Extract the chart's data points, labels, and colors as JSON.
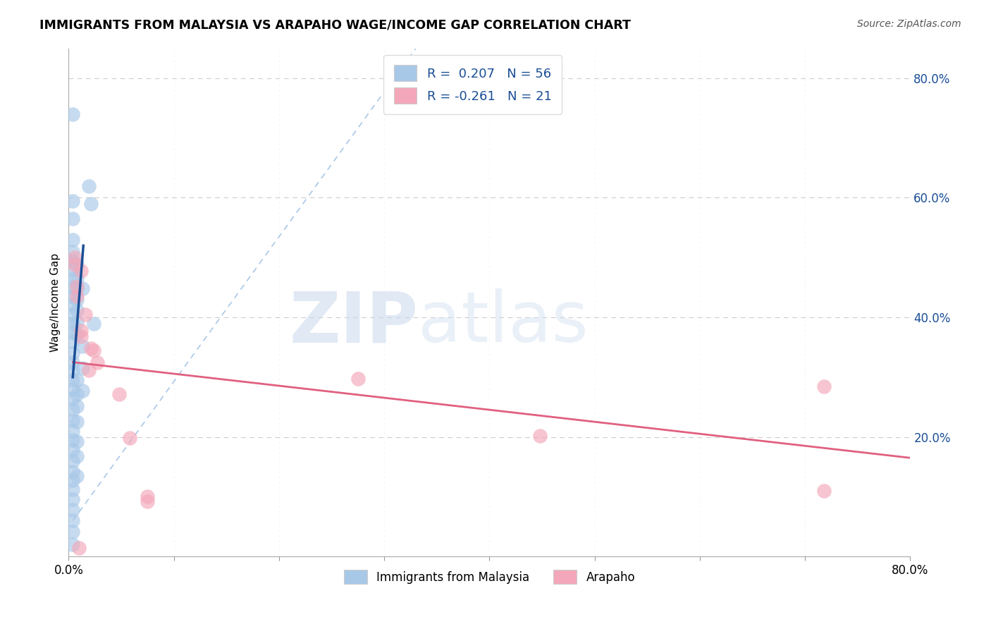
{
  "title": "IMMIGRANTS FROM MALAYSIA VS ARAPAHO WAGE/INCOME GAP CORRELATION CHART",
  "source": "Source: ZipAtlas.com",
  "ylabel": "Wage/Income Gap",
  "xlim": [
    0.0,
    0.8
  ],
  "ylim": [
    0.0,
    0.85
  ],
  "blue_color": "#A8C8E8",
  "pink_color": "#F4A7B9",
  "blue_line_color": "#1A4E96",
  "pink_line_color": "#E06080",
  "dashed_line_color": "#A8C8E8",
  "grid_color": "#CCCCCC",
  "watermark_zip": "ZIP",
  "watermark_atlas": "atlas",
  "blue_dots": [
    [
      0.004,
      0.74
    ],
    [
      0.004,
      0.595
    ],
    [
      0.004,
      0.565
    ],
    [
      0.004,
      0.53
    ],
    [
      0.004,
      0.51
    ],
    [
      0.004,
      0.495
    ],
    [
      0.004,
      0.48
    ],
    [
      0.004,
      0.465
    ],
    [
      0.004,
      0.45
    ],
    [
      0.004,
      0.435
    ],
    [
      0.004,
      0.42
    ],
    [
      0.004,
      0.405
    ],
    [
      0.004,
      0.39
    ],
    [
      0.004,
      0.375
    ],
    [
      0.004,
      0.36
    ],
    [
      0.004,
      0.34
    ],
    [
      0.004,
      0.325
    ],
    [
      0.004,
      0.31
    ],
    [
      0.004,
      0.295
    ],
    [
      0.004,
      0.28
    ],
    [
      0.004,
      0.265
    ],
    [
      0.004,
      0.245
    ],
    [
      0.004,
      0.228
    ],
    [
      0.004,
      0.21
    ],
    [
      0.004,
      0.195
    ],
    [
      0.004,
      0.178
    ],
    [
      0.004,
      0.16
    ],
    [
      0.004,
      0.142
    ],
    [
      0.004,
      0.128
    ],
    [
      0.004,
      0.112
    ],
    [
      0.004,
      0.096
    ],
    [
      0.004,
      0.078
    ],
    [
      0.004,
      0.06
    ],
    [
      0.004,
      0.042
    ],
    [
      0.004,
      0.02
    ],
    [
      0.008,
      0.49
    ],
    [
      0.008,
      0.465
    ],
    [
      0.008,
      0.448
    ],
    [
      0.008,
      0.43
    ],
    [
      0.008,
      0.412
    ],
    [
      0.008,
      0.392
    ],
    [
      0.008,
      0.372
    ],
    [
      0.008,
      0.295
    ],
    [
      0.008,
      0.272
    ],
    [
      0.008,
      0.252
    ],
    [
      0.008,
      0.225
    ],
    [
      0.008,
      0.192
    ],
    [
      0.008,
      0.168
    ],
    [
      0.008,
      0.135
    ],
    [
      0.013,
      0.448
    ],
    [
      0.013,
      0.352
    ],
    [
      0.013,
      0.315
    ],
    [
      0.013,
      0.278
    ],
    [
      0.019,
      0.62
    ],
    [
      0.021,
      0.59
    ],
    [
      0.024,
      0.39
    ]
  ],
  "pink_dots": [
    [
      0.006,
      0.5
    ],
    [
      0.006,
      0.488
    ],
    [
      0.008,
      0.452
    ],
    [
      0.008,
      0.435
    ],
    [
      0.012,
      0.478
    ],
    [
      0.012,
      0.378
    ],
    [
      0.012,
      0.368
    ],
    [
      0.016,
      0.405
    ],
    [
      0.019,
      0.312
    ],
    [
      0.021,
      0.348
    ],
    [
      0.024,
      0.345
    ],
    [
      0.027,
      0.325
    ],
    [
      0.048,
      0.272
    ],
    [
      0.058,
      0.198
    ],
    [
      0.275,
      0.298
    ],
    [
      0.448,
      0.202
    ],
    [
      0.718,
      0.285
    ],
    [
      0.718,
      0.11
    ],
    [
      0.075,
      0.1
    ],
    [
      0.075,
      0.092
    ],
    [
      0.01,
      0.015
    ]
  ],
  "blue_line": [
    [
      0.004,
      0.3
    ],
    [
      0.014,
      0.52
    ]
  ],
  "blue_dashed_line": [
    [
      0.004,
      0.06
    ],
    [
      0.33,
      0.85
    ]
  ],
  "pink_line": [
    [
      0.004,
      0.325
    ],
    [
      0.8,
      0.165
    ]
  ]
}
